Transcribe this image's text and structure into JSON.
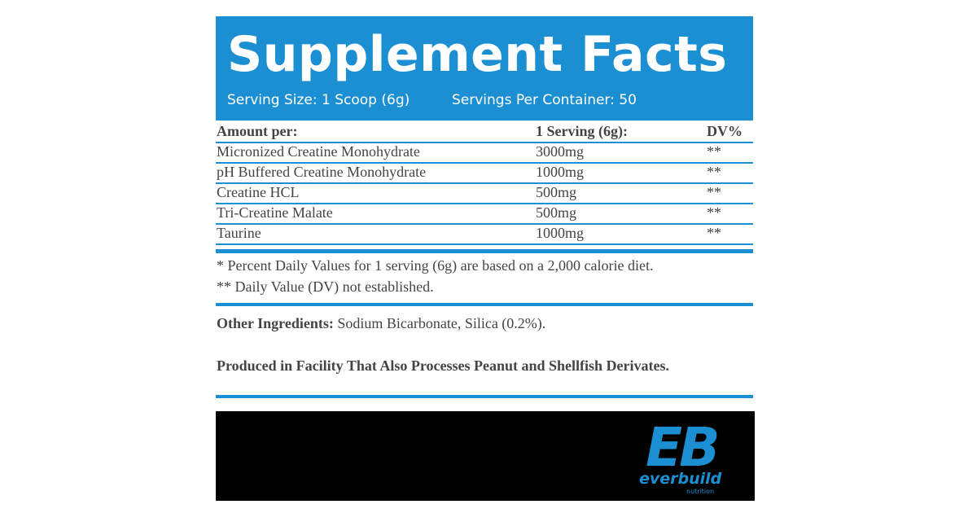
{
  "header": {
    "title": "Supplement Facts",
    "serving_size": "Serving Size: 1 Scoop (6g)",
    "servings_per_container": "Servings Per Container: 50"
  },
  "table": {
    "columns": [
      "Amount per:",
      "1 Serving (6g):",
      "DV%"
    ],
    "rows": [
      [
        "Micronized Creatine Monohydrate",
        "3000mg",
        "**"
      ],
      [
        "pH Buffered Creatine Monohydrate",
        "1000mg",
        "**"
      ],
      [
        "Creatine HCL",
        "500mg",
        "**"
      ],
      [
        "Tri-Creatine Malate",
        "500mg",
        "**"
      ],
      [
        "Taurine",
        "1000mg",
        "**"
      ]
    ]
  },
  "footnotes": [
    "* Percent Daily Values for 1 serving (6g) are based on a 2,000 calorie diet.",
    "** Daily Value (DV) not established."
  ],
  "other_ingredients": {
    "label": "Other Ingredients:",
    "text": "Sodium Bicarbonate, Silica (0.2%)."
  },
  "allergen": "Produced in Facility That Also Processes Peanut and Shellfish Derivates.",
  "logo": {
    "mark": "EB",
    "name": "everbuild",
    "sub": "nutrition"
  }
}
